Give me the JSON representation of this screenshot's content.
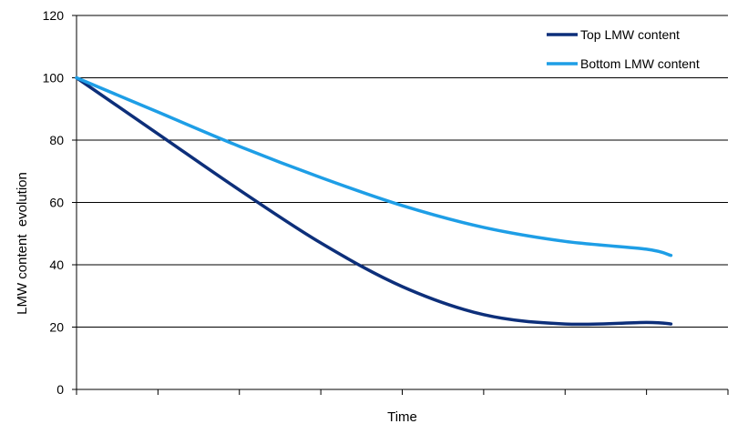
{
  "chart_data": {
    "type": "line",
    "xlabel": "Time",
    "ylabel": "LMW content  evolution",
    "ylim": [
      0,
      120
    ],
    "yticks": [
      0,
      20,
      40,
      60,
      80,
      100,
      120
    ],
    "x": [
      0,
      1,
      2,
      3,
      4,
      5,
      6,
      7,
      7.3
    ],
    "xlim": [
      0,
      8
    ],
    "grid": "horizontal",
    "legend_position": "top-right",
    "series": [
      {
        "name": "Top LMW content",
        "color": "#0d2f7a",
        "values": [
          100,
          82,
          64,
          47,
          33,
          24,
          21,
          21.5,
          21
        ]
      },
      {
        "name": "Bottom LMW content",
        "color": "#1e9ee6",
        "values": [
          100,
          89,
          78,
          68,
          59,
          52,
          47.5,
          45,
          43
        ]
      }
    ]
  }
}
